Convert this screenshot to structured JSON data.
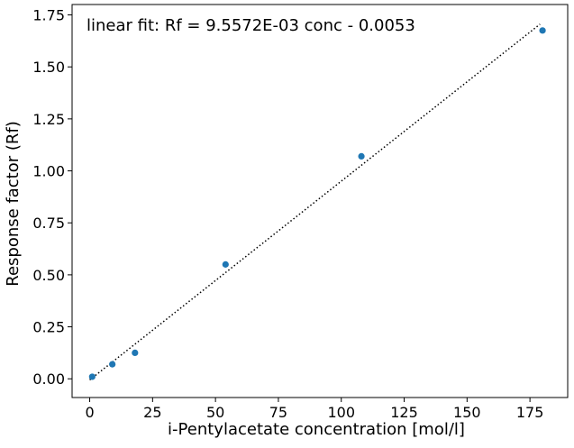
{
  "chart_data": {
    "type": "scatter",
    "annotation": "linear fit: Rf = 9.5572E-03 conc - 0.0053",
    "xlabel": "i-Pentylacetate concentration [mol/l]",
    "ylabel": "Response factor (Rf)",
    "xlim": [
      -7,
      190
    ],
    "ylim": [
      -0.09,
      1.8
    ],
    "xticks": [
      0,
      25,
      50,
      75,
      100,
      125,
      150,
      175
    ],
    "xtick_labels": [
      "0",
      "25",
      "50",
      "75",
      "100",
      "125",
      "150",
      "175"
    ],
    "yticks": [
      0.0,
      0.25,
      0.5,
      0.75,
      1.0,
      1.25,
      1.5,
      1.75
    ],
    "ytick_labels": [
      "0.00",
      "0.25",
      "0.50",
      "0.75",
      "1.00",
      "1.25",
      "1.50",
      "1.75"
    ],
    "grid": false,
    "points": {
      "x": [
        1,
        9,
        18,
        54,
        108,
        180
      ],
      "y": [
        0.01,
        0.07,
        0.125,
        0.55,
        1.07,
        1.675
      ]
    },
    "fit": {
      "slope": 0.0095572,
      "intercept": -0.0053,
      "x_range": [
        0,
        179
      ]
    },
    "colors": {
      "points": "#1f77b4",
      "fit_line": "#000000",
      "axes": "#000000"
    }
  }
}
